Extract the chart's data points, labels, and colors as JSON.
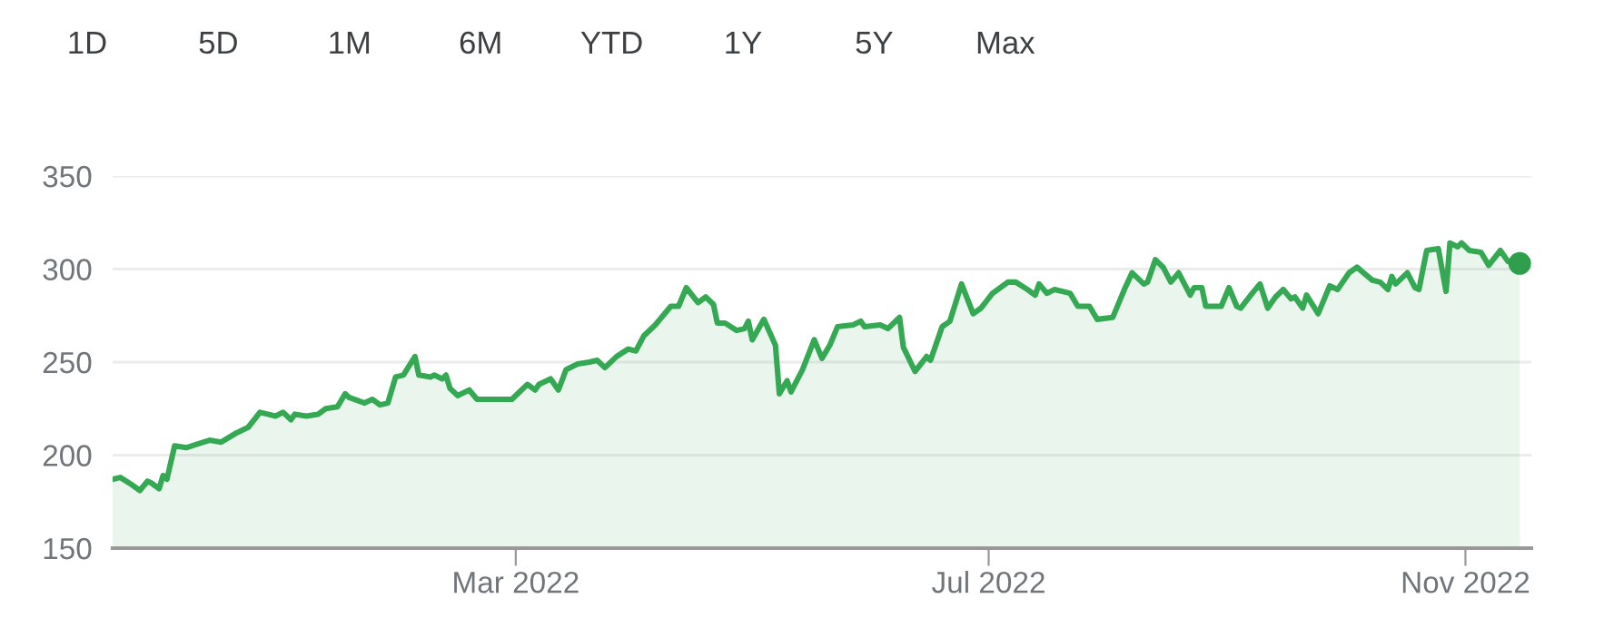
{
  "chart_data": {
    "type": "area",
    "annotations": [
      "1D",
      "5D",
      "1M",
      "6M",
      "YTD",
      "1Y",
      "5Y",
      "Max"
    ],
    "xlim": [
      "2021-11-17",
      "2022-11-18"
    ],
    "xticks": [
      {
        "value": "2022-03-01",
        "label": "Mar 2022"
      },
      {
        "value": "2022-07-01",
        "label": "Jul 2022"
      },
      {
        "value": "2022-11-01",
        "label": "Nov 2022"
      }
    ],
    "ylim": [
      150,
      350
    ],
    "yticks": [
      150,
      200,
      250,
      300,
      350
    ],
    "grid": "y",
    "legend": false,
    "series": [
      {
        "color": "#34a853",
        "x": [
          "2021-11-17",
          "2021-11-19",
          "2021-11-22",
          "2021-11-24",
          "2021-11-26",
          "2021-11-27",
          "2021-11-29",
          "2021-11-30",
          "2021-12-01",
          "2021-12-03",
          "2021-12-06",
          "2021-12-09",
          "2021-12-12",
          "2021-12-15",
          "2021-12-19",
          "2021-12-22",
          "2021-12-25",
          "2021-12-27",
          "2021-12-29",
          "2021-12-31",
          "2022-01-02",
          "2022-01-03",
          "2022-01-06",
          "2022-01-09",
          "2022-01-11",
          "2022-01-14",
          "2022-01-16",
          "2022-01-17",
          "2022-01-21",
          "2022-01-23",
          "2022-01-25",
          "2022-01-27",
          "2022-01-29",
          "2022-01-31",
          "2022-02-03",
          "2022-02-04",
          "2022-02-07",
          "2022-02-08",
          "2022-02-10",
          "2022-02-11",
          "2022-02-12",
          "2022-02-14",
          "2022-02-17",
          "2022-02-19",
          "2022-02-22",
          "2022-02-28",
          "2022-03-02",
          "2022-03-04",
          "2022-03-06",
          "2022-03-07",
          "2022-03-10",
          "2022-03-12",
          "2022-03-14",
          "2022-03-17",
          "2022-03-20",
          "2022-03-22",
          "2022-03-24",
          "2022-03-27",
          "2022-03-30",
          "2022-04-01",
          "2022-04-03",
          "2022-04-06",
          "2022-04-10",
          "2022-04-12",
          "2022-04-14",
          "2022-04-17",
          "2022-04-19",
          "2022-04-21",
          "2022-04-22",
          "2022-04-24",
          "2022-04-27",
          "2022-04-29",
          "2022-04-30",
          "2022-05-01",
          "2022-05-04",
          "2022-05-07",
          "2022-05-08",
          "2022-05-10",
          "2022-05-11",
          "2022-05-14",
          "2022-05-17",
          "2022-05-19",
          "2022-05-21",
          "2022-05-23",
          "2022-05-27",
          "2022-05-29",
          "2022-05-30",
          "2022-06-03",
          "2022-06-05",
          "2022-06-08",
          "2022-06-09",
          "2022-06-12",
          "2022-06-15",
          "2022-06-16",
          "2022-06-19",
          "2022-06-21",
          "2022-06-24",
          "2022-06-27",
          "2022-06-29",
          "2022-07-02",
          "2022-07-06",
          "2022-07-08",
          "2022-07-11",
          "2022-07-13",
          "2022-07-14",
          "2022-07-16",
          "2022-07-18",
          "2022-07-22",
          "2022-07-24",
          "2022-07-27",
          "2022-07-29",
          "2022-08-02",
          "2022-08-05",
          "2022-08-07",
          "2022-08-10",
          "2022-08-11",
          "2022-08-13",
          "2022-08-15",
          "2022-08-17",
          "2022-08-19",
          "2022-08-22",
          "2022-08-23",
          "2022-08-25",
          "2022-08-26",
          "2022-08-30",
          "2022-09-01",
          "2022-09-03",
          "2022-09-04",
          "2022-09-07",
          "2022-09-09",
          "2022-09-11",
          "2022-09-13",
          "2022-09-15",
          "2022-09-17",
          "2022-09-18",
          "2022-09-20",
          "2022-09-21",
          "2022-09-24",
          "2022-09-27",
          "2022-09-29",
          "2022-10-02",
          "2022-10-04",
          "2022-10-08",
          "2022-10-10",
          "2022-10-12",
          "2022-10-13",
          "2022-10-14",
          "2022-10-17",
          "2022-10-19",
          "2022-10-20",
          "2022-10-22",
          "2022-10-25",
          "2022-10-27",
          "2022-10-28",
          "2022-10-30",
          "2022-10-31",
          "2022-11-02",
          "2022-11-05",
          "2022-11-07",
          "2022-11-10",
          "2022-11-12",
          "2022-11-15"
        ],
        "values": [
          187,
          188,
          184,
          181,
          186,
          185,
          182,
          189,
          187,
          205,
          204,
          206,
          208,
          207,
          212,
          215,
          223,
          222,
          221,
          223,
          219,
          222,
          221,
          222,
          225,
          226,
          233,
          231,
          228,
          230,
          227,
          228,
          242,
          243,
          253,
          243,
          242,
          243,
          241,
          243,
          236,
          232,
          235,
          230,
          230,
          230,
          234,
          238,
          235,
          238,
          241,
          235,
          246,
          249,
          250,
          251,
          247,
          253,
          257,
          256,
          264,
          270,
          280,
          280,
          290,
          282,
          285,
          281,
          271,
          271,
          267,
          268,
          272,
          262,
          273,
          259,
          233,
          240,
          234,
          246,
          262,
          252,
          259,
          269,
          270,
          272,
          269,
          270,
          268,
          274,
          258,
          245,
          253,
          251,
          269,
          272,
          292,
          276,
          279,
          287,
          293,
          293,
          289,
          286,
          292,
          287,
          289,
          287,
          280,
          280,
          273,
          274,
          289,
          298,
          292,
          293,
          305,
          301,
          293,
          298,
          286,
          290,
          290,
          280,
          280,
          290,
          280,
          279,
          287,
          292,
          279,
          285,
          289,
          284,
          285,
          279,
          286,
          276,
          291,
          289,
          298,
          301,
          294,
          293,
          289,
          296,
          292,
          298,
          290,
          289,
          310,
          311,
          288,
          314,
          312,
          314,
          310,
          309,
          302,
          310,
          304,
          303
        ]
      },
      {
        "type": "scatter",
        "marker": "circle",
        "color": "#2f9e4d",
        "x": [
          "2022-11-15"
        ],
        "values": [
          303
        ]
      }
    ]
  }
}
